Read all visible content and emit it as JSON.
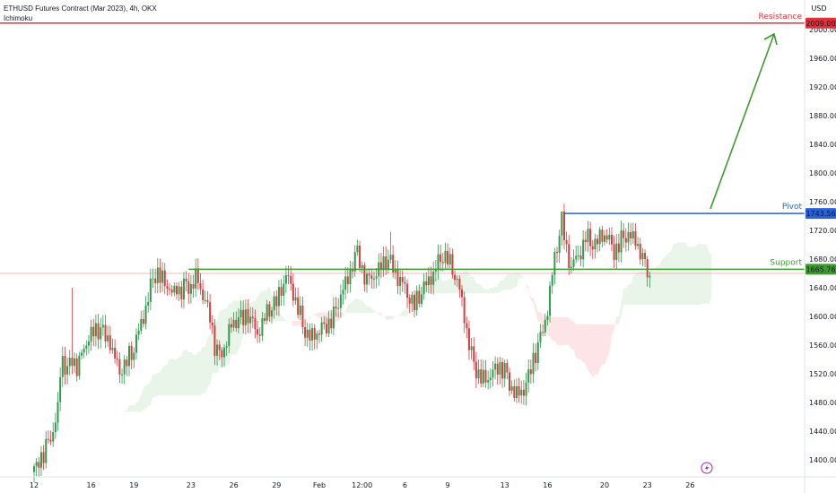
{
  "header": {
    "title": "ETHUSD Futures Contract (Mar 2023), 4h, OKX",
    "indicator": "Ichimoku",
    "currency": "USD"
  },
  "levels": {
    "resistance": {
      "label": "Resistance",
      "value": 2009.0,
      "tag": "2009.00",
      "color": "#e0303a"
    },
    "pivot": {
      "label": "Pivot",
      "value": 1743.56,
      "tag": "1743.56",
      "color": "#2a62d6"
    },
    "support": {
      "label": "Support",
      "value": 1665.76,
      "tag": "1665.76",
      "color": "#3c9a2e"
    }
  },
  "chart_data": {
    "type": "candlestick",
    "title": "ETHUSD Futures Contract (Mar 2023), 4h, OKX",
    "ylim": [
      1360,
      2040
    ],
    "y_ticks": [
      1400,
      1440,
      1480,
      1520,
      1560,
      1600,
      1640,
      1680,
      1720,
      1760,
      1800,
      1840,
      1880,
      1920,
      1960,
      2000
    ],
    "y_tick_labels": [
      "1400.00",
      "1440.00",
      "1480.00",
      "1520.00",
      "1560.00",
      "1600.00",
      "1640.00",
      "1680.00",
      "1720.00",
      "1760.00",
      "1800.00",
      "1840.00",
      "1880.00",
      "1920.00",
      "1960.00",
      "2000.00"
    ],
    "x_ticks": [
      {
        "label": "12",
        "index": 0
      },
      {
        "label": "16",
        "index": 24
      },
      {
        "label": "19",
        "index": 42
      },
      {
        "label": "23",
        "index": 66
      },
      {
        "label": "26",
        "index": 84
      },
      {
        "label": "29",
        "index": 102
      },
      {
        "label": "Feb",
        "index": 120
      },
      {
        "label": "12:00",
        "index": 138
      },
      {
        "label": "6",
        "index": 156
      },
      {
        "label": "9",
        "index": 174
      },
      {
        "label": "13",
        "index": 198
      },
      {
        "label": "16",
        "index": 216
      },
      {
        "label": "20",
        "index": 240
      },
      {
        "label": "23",
        "index": 258
      },
      {
        "label": "26",
        "index": 276
      }
    ],
    "up_color": "#2a9e4c",
    "down_color": "#e0393e",
    "price_guide": 1660,
    "waypoints": [
      [
        0,
        1382
      ],
      [
        2,
        1400
      ],
      [
        4,
        1408
      ],
      [
        6,
        1425
      ],
      [
        8,
        1440
      ],
      [
        9,
        1455
      ],
      [
        10,
        1470
      ],
      [
        11,
        1520
      ],
      [
        12,
        1540
      ],
      [
        14,
        1525
      ],
      [
        16,
        1540
      ],
      [
        18,
        1530
      ],
      [
        20,
        1545
      ],
      [
        22,
        1565
      ],
      [
        24,
        1575
      ],
      [
        26,
        1580
      ],
      [
        28,
        1585
      ],
      [
        30,
        1570
      ],
      [
        32,
        1565
      ],
      [
        34,
        1540
      ],
      [
        36,
        1525
      ],
      [
        38,
        1530
      ],
      [
        40,
        1545
      ],
      [
        42,
        1555
      ],
      [
        44,
        1580
      ],
      [
        46,
        1600
      ],
      [
        48,
        1625
      ],
      [
        50,
        1655
      ],
      [
        52,
        1660
      ],
      [
        54,
        1650
      ],
      [
        56,
        1645
      ],
      [
        58,
        1630
      ],
      [
        60,
        1640
      ],
      [
        62,
        1635
      ],
      [
        64,
        1645
      ],
      [
        66,
        1640
      ],
      [
        68,
        1655
      ],
      [
        70,
        1640
      ],
      [
        72,
        1620
      ],
      [
        74,
        1600
      ],
      [
        76,
        1560
      ],
      [
        78,
        1545
      ],
      [
        80,
        1555
      ],
      [
        82,
        1580
      ],
      [
        84,
        1590
      ],
      [
        86,
        1600
      ],
      [
        88,
        1595
      ],
      [
        90,
        1605
      ],
      [
        92,
        1590
      ],
      [
        94,
        1575
      ],
      [
        96,
        1590
      ],
      [
        98,
        1605
      ],
      [
        100,
        1615
      ],
      [
        102,
        1620
      ],
      [
        104,
        1640
      ],
      [
        106,
        1655
      ],
      [
        108,
        1645
      ],
      [
        110,
        1620
      ],
      [
        112,
        1600
      ],
      [
        114,
        1580
      ],
      [
        116,
        1570
      ],
      [
        118,
        1575
      ],
      [
        120,
        1580
      ],
      [
        122,
        1585
      ],
      [
        124,
        1590
      ],
      [
        126,
        1600
      ],
      [
        128,
        1620
      ],
      [
        130,
        1640
      ],
      [
        132,
        1650
      ],
      [
        134,
        1675
      ],
      [
        136,
        1690
      ],
      [
        138,
        1665
      ],
      [
        140,
        1650
      ],
      [
        142,
        1655
      ],
      [
        144,
        1660
      ],
      [
        146,
        1670
      ],
      [
        148,
        1680
      ],
      [
        150,
        1675
      ],
      [
        152,
        1660
      ],
      [
        154,
        1650
      ],
      [
        156,
        1640
      ],
      [
        158,
        1625
      ],
      [
        160,
        1615
      ],
      [
        162,
        1630
      ],
      [
        164,
        1640
      ],
      [
        166,
        1650
      ],
      [
        168,
        1660
      ],
      [
        170,
        1675
      ],
      [
        172,
        1685
      ],
      [
        174,
        1680
      ],
      [
        176,
        1665
      ],
      [
        178,
        1650
      ],
      [
        180,
        1620
      ],
      [
        182,
        1580
      ],
      [
        184,
        1545
      ],
      [
        186,
        1525
      ],
      [
        188,
        1515
      ],
      [
        190,
        1510
      ],
      [
        192,
        1520
      ],
      [
        194,
        1525
      ],
      [
        196,
        1530
      ],
      [
        198,
        1525
      ],
      [
        200,
        1505
      ],
      [
        202,
        1495
      ],
      [
        204,
        1490
      ],
      [
        206,
        1500
      ],
      [
        208,
        1515
      ],
      [
        210,
        1540
      ],
      [
        212,
        1560
      ],
      [
        214,
        1580
      ],
      [
        216,
        1610
      ],
      [
        218,
        1660
      ],
      [
        220,
        1700
      ],
      [
        222,
        1735
      ],
      [
        224,
        1690
      ],
      [
        226,
        1670
      ],
      [
        228,
        1680
      ],
      [
        230,
        1690
      ],
      [
        232,
        1710
      ],
      [
        234,
        1705
      ],
      [
        236,
        1700
      ],
      [
        238,
        1710
      ],
      [
        240,
        1715
      ],
      [
        242,
        1705
      ],
      [
        244,
        1690
      ],
      [
        246,
        1700
      ],
      [
        248,
        1710
      ],
      [
        250,
        1715
      ],
      [
        252,
        1708
      ],
      [
        254,
        1700
      ],
      [
        256,
        1680
      ],
      [
        258,
        1665
      ],
      [
        259,
        1650
      ]
    ]
  },
  "footer": {
    "flash_icon": "lightning-icon"
  }
}
